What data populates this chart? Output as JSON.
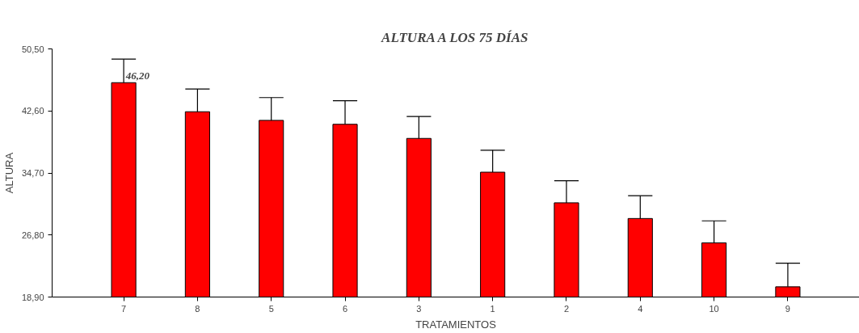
{
  "chart_data": {
    "type": "bar",
    "title": "ALTURA A LOS 75 DÍAS",
    "xlabel": "TRATAMIENTOS",
    "ylabel": "ALTURA",
    "categories": [
      "7",
      "8",
      "5",
      "6",
      "3",
      "1",
      "2",
      "4",
      "10",
      "9"
    ],
    "values": [
      46.2,
      42.5,
      41.4,
      40.9,
      39.1,
      34.8,
      30.9,
      28.9,
      25.8,
      20.2
    ],
    "errors": [
      [
        46.2,
        49.2
      ],
      [
        42.5,
        45.4
      ],
      [
        41.4,
        44.3
      ],
      [
        40.9,
        43.9
      ],
      [
        39.1,
        41.9
      ],
      [
        34.8,
        37.6
      ],
      [
        30.9,
        33.7
      ],
      [
        28.9,
        31.8
      ],
      [
        25.8,
        28.6
      ],
      [
        20.2,
        23.2
      ]
    ],
    "value_labels": [
      "46,20",
      null,
      null,
      null,
      null,
      null,
      null,
      null,
      null,
      null
    ],
    "color": "#ff0000",
    "ylim": [
      18.9,
      50.5
    ],
    "yticks": [
      {
        "value": 18.9,
        "label": "18,90"
      },
      {
        "value": 26.8,
        "label": "26,80"
      },
      {
        "value": 34.7,
        "label": "34,70"
      },
      {
        "value": 42.6,
        "label": "42,60"
      },
      {
        "value": 50.5,
        "label": "50,50"
      }
    ],
    "grid": false
  }
}
